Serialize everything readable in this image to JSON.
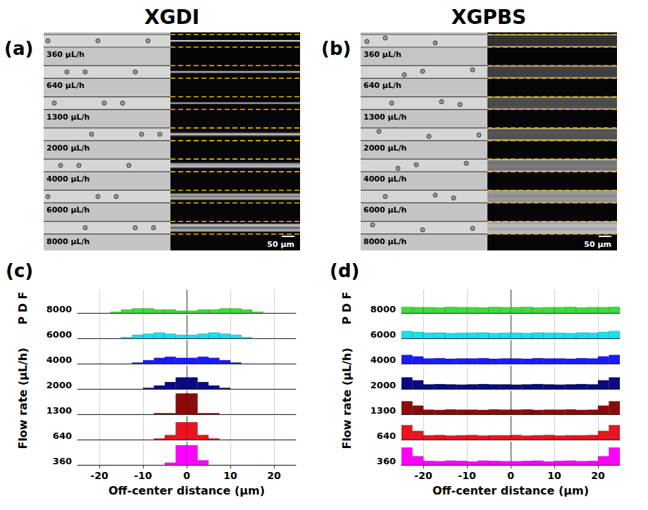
{
  "panels": [
    {
      "panel_label": "(a)",
      "title": "XGDI",
      "flow_rate_labels": [
        "360 μL/h",
        "640 μL/h",
        "1300 μL/h",
        "2000 μL/h",
        "4000 μL/h",
        "6000 μL/h",
        "8000 μL/h"
      ],
      "scale_bar": "50 μm"
    },
    {
      "panel_label": "(b)",
      "title": "XGPBS",
      "flow_rate_labels": [
        "360 μL/h",
        "640 μL/h",
        "1300 μL/h",
        "2000 μL/h",
        "4000 μL/h",
        "6000 μL/h",
        "8000 μL/h"
      ],
      "scale_bar": "50 μm"
    }
  ],
  "chart_data": [
    {
      "type": "bar",
      "panel_label": "(c)",
      "x_label": "Off-center distance (μm)",
      "y_label": "Flow rate (μL/h)",
      "z_label": "P D F",
      "bins": [
        -25,
        -22.5,
        -20,
        -17.5,
        -15,
        -12.5,
        -10,
        -7.5,
        -5,
        -2.5,
        0,
        2.5,
        5,
        7.5,
        10,
        12.5,
        15,
        17.5,
        20,
        22.5,
        25
      ],
      "xlim": [
        -25,
        25
      ],
      "xticks": [
        -20,
        -10,
        0,
        10,
        20
      ],
      "ylim": [
        0,
        0.2
      ],
      "grid": true,
      "tick_labels": "x",
      "series": [
        {
          "name": "360",
          "color": "#ff00ff",
          "values": [
            0,
            0,
            0,
            0,
            0,
            0,
            0,
            0,
            0.02,
            0.17,
            0.17,
            0.04,
            0,
            0,
            0,
            0,
            0,
            0,
            0,
            0
          ]
        },
        {
          "name": "640",
          "color": "#e8141e",
          "values": [
            0,
            0,
            0,
            0,
            0,
            0,
            0,
            0.01,
            0.04,
            0.15,
            0.15,
            0.04,
            0.01,
            0,
            0,
            0,
            0,
            0,
            0,
            0
          ]
        },
        {
          "name": "1300",
          "color": "#8b0a0a",
          "values": [
            0,
            0,
            0,
            0,
            0,
            0,
            0,
            0.01,
            0.01,
            0.18,
            0.18,
            0.01,
            0.01,
            0,
            0,
            0,
            0,
            0,
            0,
            0
          ]
        },
        {
          "name": "2000",
          "color": "#0a0a80",
          "values": [
            0,
            0,
            0,
            0,
            0,
            0,
            0.01,
            0.03,
            0.06,
            0.1,
            0.1,
            0.06,
            0.03,
            0.01,
            0,
            0,
            0,
            0,
            0,
            0
          ]
        },
        {
          "name": "4000",
          "color": "#1a1aff",
          "values": [
            0,
            0,
            0,
            0,
            0,
            0.01,
            0.03,
            0.05,
            0.06,
            0.05,
            0.05,
            0.06,
            0.05,
            0.03,
            0.01,
            0,
            0,
            0,
            0,
            0
          ]
        },
        {
          "name": "6000",
          "color": "#19e0ea",
          "values": [
            0,
            0,
            0,
            0,
            0.01,
            0.03,
            0.04,
            0.05,
            0.04,
            0.03,
            0.03,
            0.04,
            0.05,
            0.04,
            0.03,
            0.01,
            0,
            0,
            0,
            0
          ]
        },
        {
          "name": "8000",
          "color": "#3cdc3c",
          "values": [
            0,
            0,
            0,
            0.01,
            0.03,
            0.04,
            0.04,
            0.03,
            0.03,
            0.02,
            0.02,
            0.03,
            0.03,
            0.04,
            0.04,
            0.03,
            0.01,
            0,
            0,
            0
          ]
        }
      ]
    },
    {
      "type": "bar",
      "panel_label": "(d)",
      "x_label": "Off-center distance (μm)",
      "y_label": "Flow rate (μL/h)",
      "z_label": "P D F",
      "bins": [
        -25,
        -22.5,
        -20,
        -17.5,
        -15,
        -12.5,
        -10,
        -7.5,
        -5,
        -2.5,
        0,
        2.5,
        5,
        7.5,
        10,
        12.5,
        15,
        17.5,
        20,
        22.5,
        25
      ],
      "xlim": [
        -25,
        25
      ],
      "xticks": [
        -20,
        -10,
        0,
        10,
        20
      ],
      "ylim": [
        0,
        0.08
      ],
      "grid": true,
      "tick_labels": "x",
      "series": [
        {
          "name": "360",
          "color": "#ff00ff",
          "values": [
            0.06,
            0.03,
            0.014,
            0.013,
            0.015,
            0.014,
            0.012,
            0.015,
            0.014,
            0.013,
            0.013,
            0.014,
            0.015,
            0.012,
            0.014,
            0.015,
            0.013,
            0.014,
            0.03,
            0.06
          ]
        },
        {
          "name": "640",
          "color": "#e8141e",
          "values": [
            0.05,
            0.03,
            0.015,
            0.016,
            0.014,
            0.015,
            0.016,
            0.014,
            0.015,
            0.015,
            0.016,
            0.014,
            0.015,
            0.016,
            0.014,
            0.015,
            0.015,
            0.016,
            0.03,
            0.05
          ]
        },
        {
          "name": "1300",
          "color": "#8b0a0a",
          "values": [
            0.045,
            0.03,
            0.016,
            0.015,
            0.017,
            0.016,
            0.016,
            0.015,
            0.017,
            0.016,
            0.016,
            0.017,
            0.015,
            0.016,
            0.016,
            0.017,
            0.015,
            0.016,
            0.03,
            0.045
          ]
        },
        {
          "name": "2000",
          "color": "#0a0a80",
          "values": [
            0.04,
            0.03,
            0.016,
            0.017,
            0.016,
            0.015,
            0.016,
            0.017,
            0.016,
            0.016,
            0.015,
            0.016,
            0.017,
            0.016,
            0.015,
            0.016,
            0.017,
            0.016,
            0.03,
            0.04
          ]
        },
        {
          "name": "4000",
          "color": "#1a1aff",
          "values": [
            0.03,
            0.025,
            0.018,
            0.019,
            0.017,
            0.018,
            0.018,
            0.019,
            0.017,
            0.018,
            0.018,
            0.017,
            0.019,
            0.018,
            0.018,
            0.017,
            0.019,
            0.018,
            0.025,
            0.03
          ]
        },
        {
          "name": "6000",
          "color": "#19e0ea",
          "values": [
            0.025,
            0.022,
            0.019,
            0.02,
            0.018,
            0.019,
            0.019,
            0.02,
            0.018,
            0.019,
            0.019,
            0.018,
            0.02,
            0.019,
            0.019,
            0.018,
            0.02,
            0.019,
            0.022,
            0.025
          ]
        },
        {
          "name": "8000",
          "color": "#3cdc3c",
          "values": [
            0.021,
            0.02,
            0.02,
            0.019,
            0.021,
            0.02,
            0.02,
            0.019,
            0.021,
            0.02,
            0.02,
            0.021,
            0.019,
            0.02,
            0.02,
            0.021,
            0.019,
            0.02,
            0.02,
            0.021
          ]
        }
      ]
    }
  ]
}
